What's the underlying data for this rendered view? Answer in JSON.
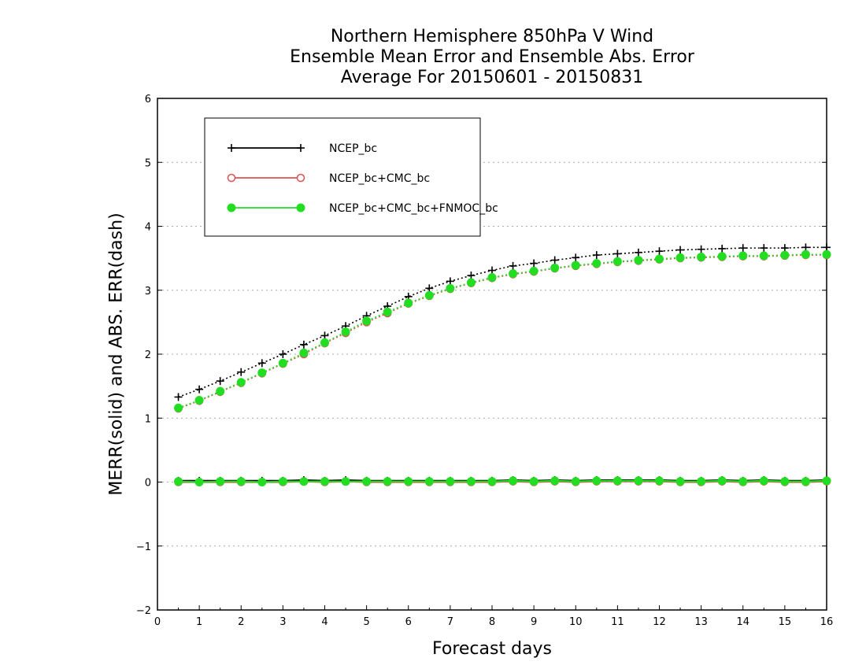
{
  "chart_data": {
    "type": "line",
    "title": [
      "Northern Hemisphere 850hPa V Wind",
      "Ensemble Mean Error and Ensemble Abs. Error",
      "Average For 20150601 - 20150831"
    ],
    "xlabel": "Forecast days",
    "ylabel": "MERR(solid) and ABS. ERR(dash)",
    "xlim": [
      0,
      16
    ],
    "ylim": [
      -2,
      6
    ],
    "xticks": [
      0,
      1,
      2,
      3,
      4,
      5,
      6,
      7,
      8,
      9,
      10,
      11,
      12,
      13,
      14,
      15,
      16
    ],
    "yticks": [
      -2,
      -1,
      0,
      1,
      2,
      3,
      4,
      5,
      6
    ],
    "grid": "horizontal-dotted",
    "legend_position": "top-left",
    "x": [
      0.5,
      1,
      1.5,
      2,
      2.5,
      3,
      3.5,
      4,
      4.5,
      5,
      5.5,
      6,
      6.5,
      7,
      7.5,
      8,
      8.5,
      9,
      9.5,
      10,
      10.5,
      11,
      11.5,
      12,
      12.5,
      13,
      13.5,
      14,
      14.5,
      15,
      15.5,
      16
    ],
    "series": [
      {
        "name": "NCEP_bc",
        "color": "#000000",
        "marker": "plus",
        "merr": [
          0.02,
          0.02,
          0.02,
          0.02,
          0.02,
          0.02,
          0.03,
          0.02,
          0.03,
          0.02,
          0.02,
          0.02,
          0.02,
          0.02,
          0.02,
          0.02,
          0.03,
          0.02,
          0.03,
          0.02,
          0.03,
          0.03,
          0.03,
          0.03,
          0.02,
          0.02,
          0.03,
          0.02,
          0.03,
          0.02,
          0.02,
          0.03
        ],
        "abs_err": [
          1.33,
          1.45,
          1.58,
          1.72,
          1.86,
          2.0,
          2.15,
          2.29,
          2.44,
          2.6,
          2.75,
          2.9,
          3.03,
          3.14,
          3.23,
          3.31,
          3.38,
          3.42,
          3.47,
          3.51,
          3.55,
          3.57,
          3.59,
          3.61,
          3.63,
          3.64,
          3.65,
          3.66,
          3.66,
          3.66,
          3.67,
          3.67
        ]
      },
      {
        "name": "NCEP_bc+CMC_bc",
        "color": "#e05050",
        "marker": "open-circle",
        "merr": [
          0.0,
          0.0,
          0.0,
          0.0,
          0.0,
          0.0,
          0.01,
          0.0,
          0.01,
          0.0,
          0.0,
          0.0,
          0.0,
          0.0,
          0.0,
          0.0,
          0.01,
          0.0,
          0.01,
          0.0,
          0.01,
          0.01,
          0.01,
          0.01,
          0.0,
          0.0,
          0.01,
          0.0,
          0.01,
          0.0,
          0.0,
          0.01
        ],
        "abs_err": [
          1.15,
          1.27,
          1.41,
          1.55,
          1.7,
          1.85,
          2.0,
          2.17,
          2.33,
          2.5,
          2.64,
          2.79,
          2.91,
          3.02,
          3.11,
          3.19,
          3.25,
          3.29,
          3.34,
          3.38,
          3.41,
          3.44,
          3.46,
          3.48,
          3.5,
          3.51,
          3.52,
          3.53,
          3.53,
          3.54,
          3.55,
          3.55
        ]
      },
      {
        "name": "NCEP_bc+CMC_bc+FNMOC_bc",
        "color": "#22dd22",
        "marker": "filled-circle",
        "merr": [
          0.01,
          0.0,
          0.01,
          0.01,
          0.0,
          0.01,
          0.01,
          0.01,
          0.01,
          0.01,
          0.01,
          0.01,
          0.01,
          0.01,
          0.01,
          0.01,
          0.02,
          0.01,
          0.02,
          0.01,
          0.02,
          0.02,
          0.02,
          0.02,
          0.01,
          0.01,
          0.02,
          0.01,
          0.02,
          0.01,
          0.01,
          0.02
        ],
        "abs_err": [
          1.16,
          1.28,
          1.42,
          1.56,
          1.71,
          1.86,
          2.02,
          2.18,
          2.35,
          2.52,
          2.66,
          2.8,
          2.92,
          3.03,
          3.12,
          3.2,
          3.26,
          3.3,
          3.35,
          3.39,
          3.42,
          3.45,
          3.47,
          3.49,
          3.51,
          3.52,
          3.53,
          3.54,
          3.54,
          3.55,
          3.56,
          3.56
        ]
      }
    ]
  }
}
